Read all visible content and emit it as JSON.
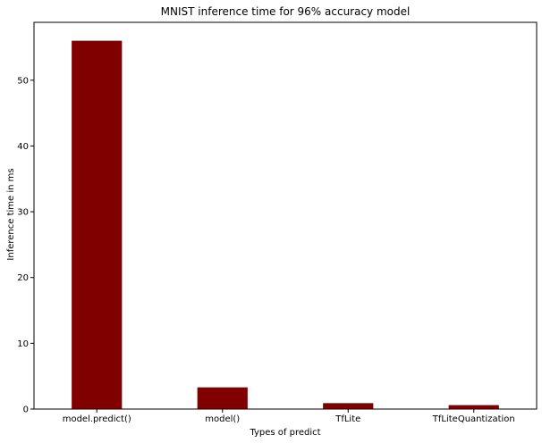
{
  "chart_data": {
    "type": "bar",
    "title": "MNIST inference time for 96% accuracy model",
    "xlabel": "Types of predict",
    "ylabel": "Inference time in ms",
    "categories": [
      "model.predict()",
      "model()",
      "TfLite",
      "TfLiteQuantization"
    ],
    "values": [
      56.0,
      3.3,
      0.9,
      0.6
    ],
    "ylim": [
      0,
      58.8
    ],
    "yticks": [
      0,
      10,
      20,
      30,
      40,
      50
    ],
    "bar_color": "#800000",
    "grid": false,
    "legend": "none"
  }
}
